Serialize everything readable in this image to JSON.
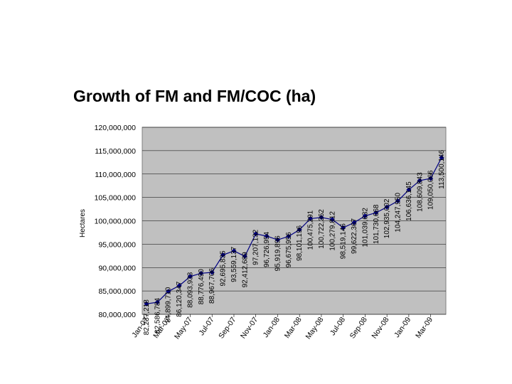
{
  "slide": {
    "title": "Growth of FM and FM/COC (ha)"
  },
  "colors": {
    "plot_background": "#c0c0c0",
    "series_line": "#000080",
    "grid_line": "#000000",
    "page_background": "#ffffff"
  },
  "chart_data": {
    "type": "line",
    "title": "",
    "xlabel": "",
    "ylabel": "Hectares",
    "ylim": [
      80000000,
      120000000
    ],
    "grid": true,
    "legend": "none",
    "y_ticks": [
      "80,000,000",
      "85,000,000",
      "90,000,000",
      "95,000,000",
      "100,000,000",
      "105,000,000",
      "110,000,000",
      "115,000,000",
      "120,000,000"
    ],
    "x_tick_labels": [
      "Jan-07",
      "Mar-07",
      "May-07",
      "Jul-07",
      "Sep-07",
      "Nov-07",
      "Jan-08",
      "Mar-08",
      "May-08",
      "Jul-08",
      "Sep-08",
      "Nov-08",
      "Jan-09",
      "Mar-09"
    ],
    "series": [
      {
        "values": [
          82237218,
          82586784,
          84899710,
          86120347,
          88093933,
          88776490,
          88967706,
          92695835,
          93559137,
          92412689,
          97207132,
          96726954,
          95919896,
          96675956,
          98101196,
          100475291,
          100722362,
          100279812,
          98519146,
          99622367,
          101039632,
          101730668,
          102935002,
          104247950,
          106636145,
          108609843,
          109050066,
          113500146
        ],
        "labels": [
          "82,237,218",
          "82,586,784",
          "84,899,710",
          "86,120,347",
          "88,093,933",
          "88,776,490",
          "88,967,706",
          "92,695,835",
          "93,559,137",
          "92,412,689",
          "97,207,132",
          "96,726,954",
          "95,919,896",
          "96,675,956",
          "98,101,196",
          "100,475,291",
          "100,722,362",
          "100,279,812",
          "98,519,146",
          "99,622,367",
          "101,039,632",
          "101,730,668",
          "102,935,002",
          "104,247,950",
          "106,636,145",
          "108,609,843",
          "109,050,066",
          "113,500,146"
        ]
      }
    ]
  }
}
